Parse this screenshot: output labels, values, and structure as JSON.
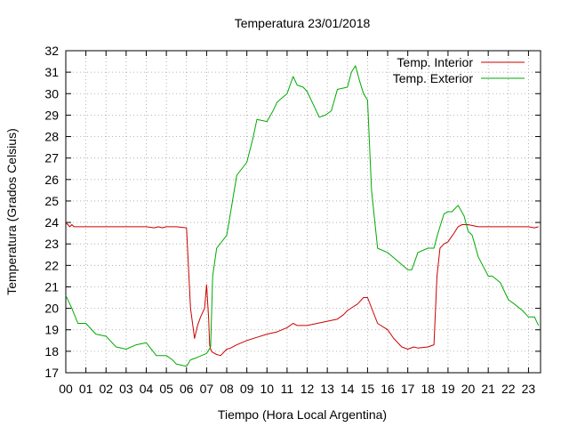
{
  "chart_data": {
    "type": "line",
    "title": "Temperatura 23/01/2018",
    "xlabel": "Tiempo (Hora Local Argentina)",
    "ylabel": "Temperatura (Grados Celsius)",
    "xlim": [
      0,
      23.6
    ],
    "ylim": [
      17,
      32
    ],
    "x_ticks": [
      0,
      1,
      2,
      3,
      4,
      5,
      6,
      7,
      8,
      9,
      10,
      11,
      12,
      13,
      14,
      15,
      16,
      17,
      18,
      19,
      20,
      21,
      22,
      23
    ],
    "x_tick_labels": [
      "00",
      "01",
      "02",
      "03",
      "04",
      "05",
      "06",
      "07",
      "08",
      "09",
      "10",
      "11",
      "12",
      "13",
      "14",
      "15",
      "16",
      "17",
      "18",
      "19",
      "20",
      "21",
      "22",
      "23"
    ],
    "y_ticks": [
      17,
      18,
      19,
      20,
      21,
      22,
      23,
      24,
      25,
      26,
      27,
      28,
      29,
      30,
      31,
      32
    ],
    "y_tick_labels": [
      "17",
      "18",
      "19",
      "20",
      "21",
      "22",
      "23",
      "24",
      "25",
      "26",
      "27",
      "28",
      "29",
      "30",
      "31",
      "32"
    ],
    "grid": true,
    "legend_position": "top-right",
    "series": [
      {
        "name": "Temp. Interior",
        "color": "#cc0000",
        "x": [
          0,
          0.1,
          0.2,
          0.3,
          0.4,
          0.5,
          1,
          2,
          3,
          4,
          4.4,
          4.6,
          4.8,
          5,
          5.5,
          6,
          6.2,
          6.4,
          6.55,
          6.7,
          6.9,
          7,
          7.1,
          7.15,
          7.2,
          7.25,
          7.3,
          7.5,
          7.7,
          8,
          8.2,
          8.5,
          9,
          9.5,
          10,
          10.5,
          11,
          11.3,
          11.5,
          12,
          12.5,
          13,
          13.5,
          13.8,
          14,
          14.5,
          14.8,
          15,
          15.5,
          16,
          16.3,
          16.7,
          17,
          17.3,
          17.5,
          18,
          18.3,
          18.45,
          18.6,
          18.8,
          19,
          19.3,
          19.5,
          19.7,
          20,
          20.5,
          21,
          22,
          23,
          23.3,
          23.5
        ],
        "values": [
          24.0,
          23.9,
          23.8,
          23.9,
          23.8,
          23.8,
          23.8,
          23.8,
          23.8,
          23.8,
          23.75,
          23.8,
          23.75,
          23.8,
          23.8,
          23.75,
          20.0,
          18.6,
          19.2,
          19.6,
          20.0,
          21.1,
          19.5,
          18.3,
          18.1,
          18.0,
          17.95,
          17.85,
          17.8,
          18.1,
          18.15,
          18.3,
          18.5,
          18.65,
          18.8,
          18.9,
          19.1,
          19.3,
          19.2,
          19.2,
          19.3,
          19.4,
          19.5,
          19.7,
          19.9,
          20.2,
          20.5,
          20.5,
          19.3,
          19.0,
          18.6,
          18.2,
          18.1,
          18.2,
          18.15,
          18.2,
          18.3,
          21.5,
          22.8,
          23.0,
          23.1,
          23.5,
          23.8,
          23.9,
          23.9,
          23.8,
          23.8,
          23.8,
          23.8,
          23.75,
          23.8
        ]
      },
      {
        "name": "Temp. Exterior",
        "color": "#00aa00",
        "x": [
          0,
          0.3,
          0.6,
          1,
          1.5,
          2,
          2.5,
          3,
          3.5,
          4,
          4.5,
          5,
          5.3,
          5.5,
          6,
          6.2,
          6.5,
          7,
          7.2,
          7.3,
          7.5,
          8,
          8.2,
          8.5,
          9,
          9.3,
          9.5,
          10,
          10.3,
          10.5,
          11,
          11.3,
          11.5,
          11.8,
          12,
          12.3,
          12.6,
          12.9,
          13.2,
          13.5,
          14,
          14.2,
          14.4,
          14.6,
          14.8,
          15,
          15.2,
          15.5,
          16,
          16.5,
          17,
          17.2,
          17.5,
          18,
          18.3,
          18.5,
          18.8,
          19,
          19.2,
          19.5,
          19.8,
          20,
          20.2,
          20.5,
          21,
          21.2,
          21.6,
          22,
          22.3,
          22.7,
          23,
          23.3,
          23.5
        ],
        "values": [
          20.6,
          20.0,
          19.3,
          19.3,
          18.8,
          18.7,
          18.2,
          18.1,
          18.3,
          18.4,
          17.8,
          17.8,
          17.6,
          17.4,
          17.3,
          17.6,
          17.7,
          17.9,
          18.2,
          21.5,
          22.8,
          23.4,
          24.5,
          26.2,
          26.8,
          27.9,
          28.8,
          28.7,
          29.2,
          29.6,
          30.0,
          30.8,
          30.4,
          30.3,
          30.1,
          29.5,
          28.9,
          29.0,
          29.2,
          30.2,
          30.3,
          31.0,
          31.3,
          30.6,
          30.0,
          29.7,
          25.5,
          22.8,
          22.6,
          22.2,
          21.8,
          21.8,
          22.6,
          22.8,
          22.8,
          23.5,
          24.4,
          24.5,
          24.5,
          24.8,
          24.3,
          23.6,
          23.4,
          22.4,
          21.5,
          21.5,
          21.2,
          20.4,
          20.2,
          19.9,
          19.6,
          19.6,
          19.2
        ]
      }
    ]
  }
}
